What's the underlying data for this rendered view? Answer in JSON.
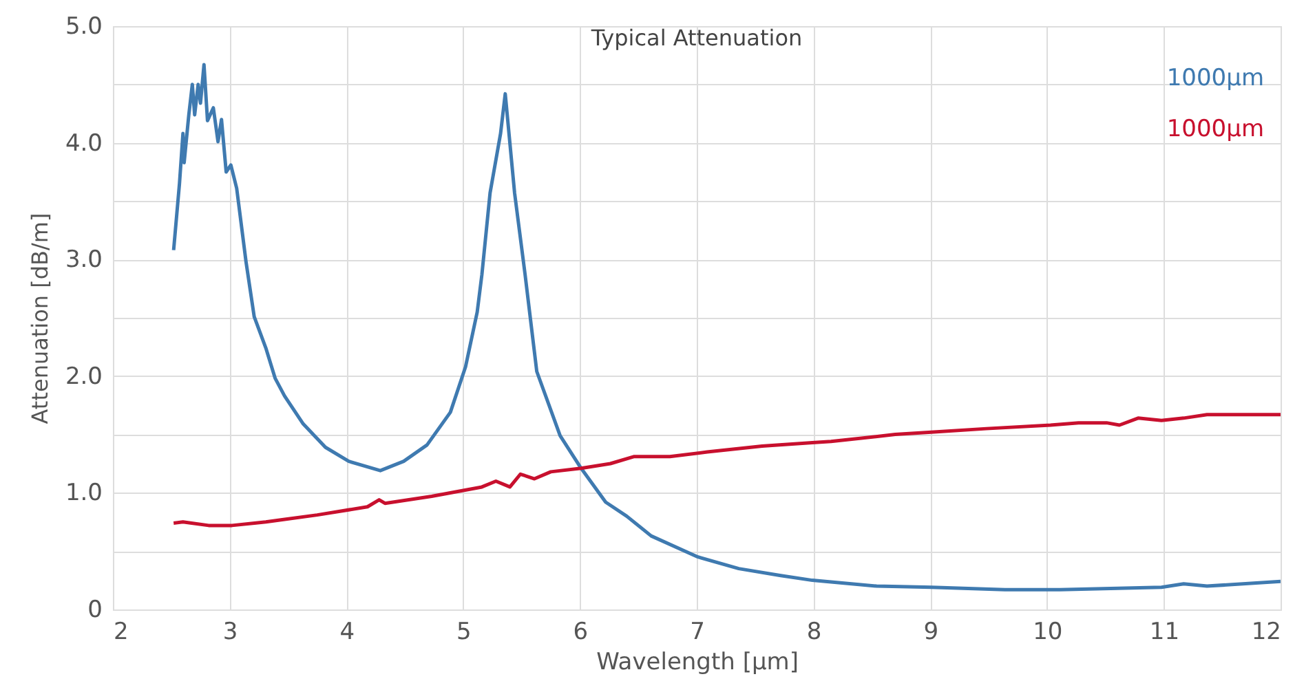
{
  "chart_data": {
    "type": "line",
    "title": "Typical Attenuation",
    "xlabel": "Wavelength [µm]",
    "ylabel": "Attenuation [dB/m]",
    "xlim": [
      2,
      12
    ],
    "xticks": [
      2,
      3,
      4,
      5,
      6,
      7,
      8,
      9,
      10,
      11,
      12
    ],
    "ylim": [
      0,
      5
    ],
    "yticks": [
      0,
      {
        "value": 0.5,
        "label": null
      },
      {
        "value": 1,
        "label": "1.0"
      },
      {
        "value": 1.5,
        "label": null
      },
      {
        "value": 2,
        "label": "2.0"
      },
      {
        "value": 2.5,
        "label": null
      },
      {
        "value": 3,
        "label": "3.0"
      },
      {
        "value": 3.5,
        "label": null
      },
      {
        "value": 4,
        "label": "4.0"
      },
      {
        "value": 4.5,
        "label": null
      },
      {
        "value": 5,
        "label": "5.0"
      }
    ],
    "grid": true,
    "legend": "top right",
    "series": [
      {
        "name": "1000µm",
        "color": "#3f7ab0",
        "x": [
          2.52,
          2.57,
          2.6,
          2.61,
          2.65,
          2.68,
          2.7,
          2.73,
          2.75,
          2.78,
          2.81,
          2.86,
          2.9,
          2.93,
          2.97,
          3.01,
          3.06,
          3.14,
          3.21,
          3.31,
          3.39,
          3.47,
          3.63,
          3.82,
          4.02,
          4.29,
          4.49,
          4.69,
          4.89,
          5.02,
          5.12,
          5.16,
          5.23,
          5.32,
          5.36,
          5.44,
          5.53,
          5.63,
          5.83,
          6.01,
          6.22,
          6.4,
          6.61,
          7.01,
          7.36,
          7.72,
          7.99,
          8.54,
          9.01,
          9.64,
          10.11,
          10.98,
          11.17,
          11.37,
          12.0
        ],
        "values": [
          3.08,
          3.65,
          4.08,
          3.83,
          4.24,
          4.5,
          4.24,
          4.5,
          4.34,
          4.67,
          4.19,
          4.3,
          4.01,
          4.2,
          3.75,
          3.81,
          3.61,
          2.98,
          2.51,
          2.24,
          1.98,
          1.83,
          1.59,
          1.39,
          1.27,
          1.19,
          1.27,
          1.41,
          1.69,
          2.08,
          2.55,
          2.87,
          3.57,
          4.08,
          4.42,
          3.57,
          2.87,
          2.04,
          1.49,
          1.21,
          0.92,
          0.8,
          0.63,
          0.45,
          0.35,
          0.29,
          0.25,
          0.2,
          0.19,
          0.17,
          0.17,
          0.19,
          0.22,
          0.2,
          0.24
        ]
      },
      {
        "name": "1000µm",
        "color": "#c8102e",
        "x": [
          2.52,
          2.6,
          2.82,
          3.02,
          3.31,
          3.45,
          3.75,
          4.18,
          4.28,
          4.33,
          4.73,
          5.16,
          5.28,
          5.4,
          5.49,
          5.61,
          5.75,
          6.01,
          6.26,
          6.46,
          6.77,
          7.09,
          7.56,
          7.99,
          8.15,
          8.7,
          9.01,
          9.48,
          10.03,
          10.27,
          10.51,
          10.62,
          10.78,
          10.98,
          11.17,
          11.37,
          12.0
        ],
        "values": [
          0.74,
          0.75,
          0.72,
          0.72,
          0.75,
          0.77,
          0.81,
          0.88,
          0.94,
          0.91,
          0.97,
          1.05,
          1.1,
          1.05,
          1.16,
          1.12,
          1.18,
          1.21,
          1.25,
          1.31,
          1.31,
          1.35,
          1.4,
          1.43,
          1.44,
          1.5,
          1.52,
          1.55,
          1.58,
          1.6,
          1.6,
          1.58,
          1.64,
          1.62,
          1.64,
          1.67,
          1.67
        ]
      }
    ]
  }
}
